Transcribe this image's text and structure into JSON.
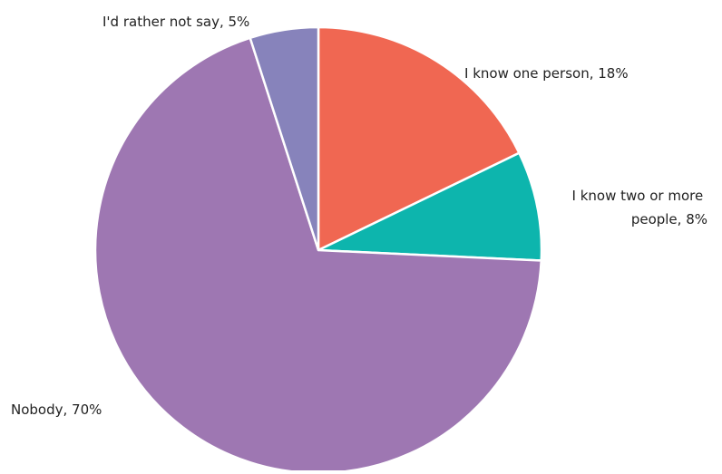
{
  "chart_data": {
    "type": "pie",
    "title": "",
    "start_angle_deg": 0,
    "direction": "clockwise",
    "slices": [
      {
        "label": "I know one person",
        "value": 18,
        "display": "I know one person, 18%",
        "color": "#f06752"
      },
      {
        "label": "I know two or more people",
        "value": 8,
        "display": "I know two or more people, 8%",
        "display_lines": [
          "I know two or more",
          "people, 8%"
        ],
        "color": "#0db5ad"
      },
      {
        "label": "Nobody",
        "value": 70,
        "display": "Nobody, 70%",
        "color": "#9e77b2"
      },
      {
        "label": "I'd rather not say",
        "value": 5,
        "display": "I'd rather not say, 5%",
        "color": "#8783bb"
      }
    ],
    "unit": "%",
    "legend": "none (labels placed beside slices)",
    "slice_border_color": "#ffffff"
  }
}
